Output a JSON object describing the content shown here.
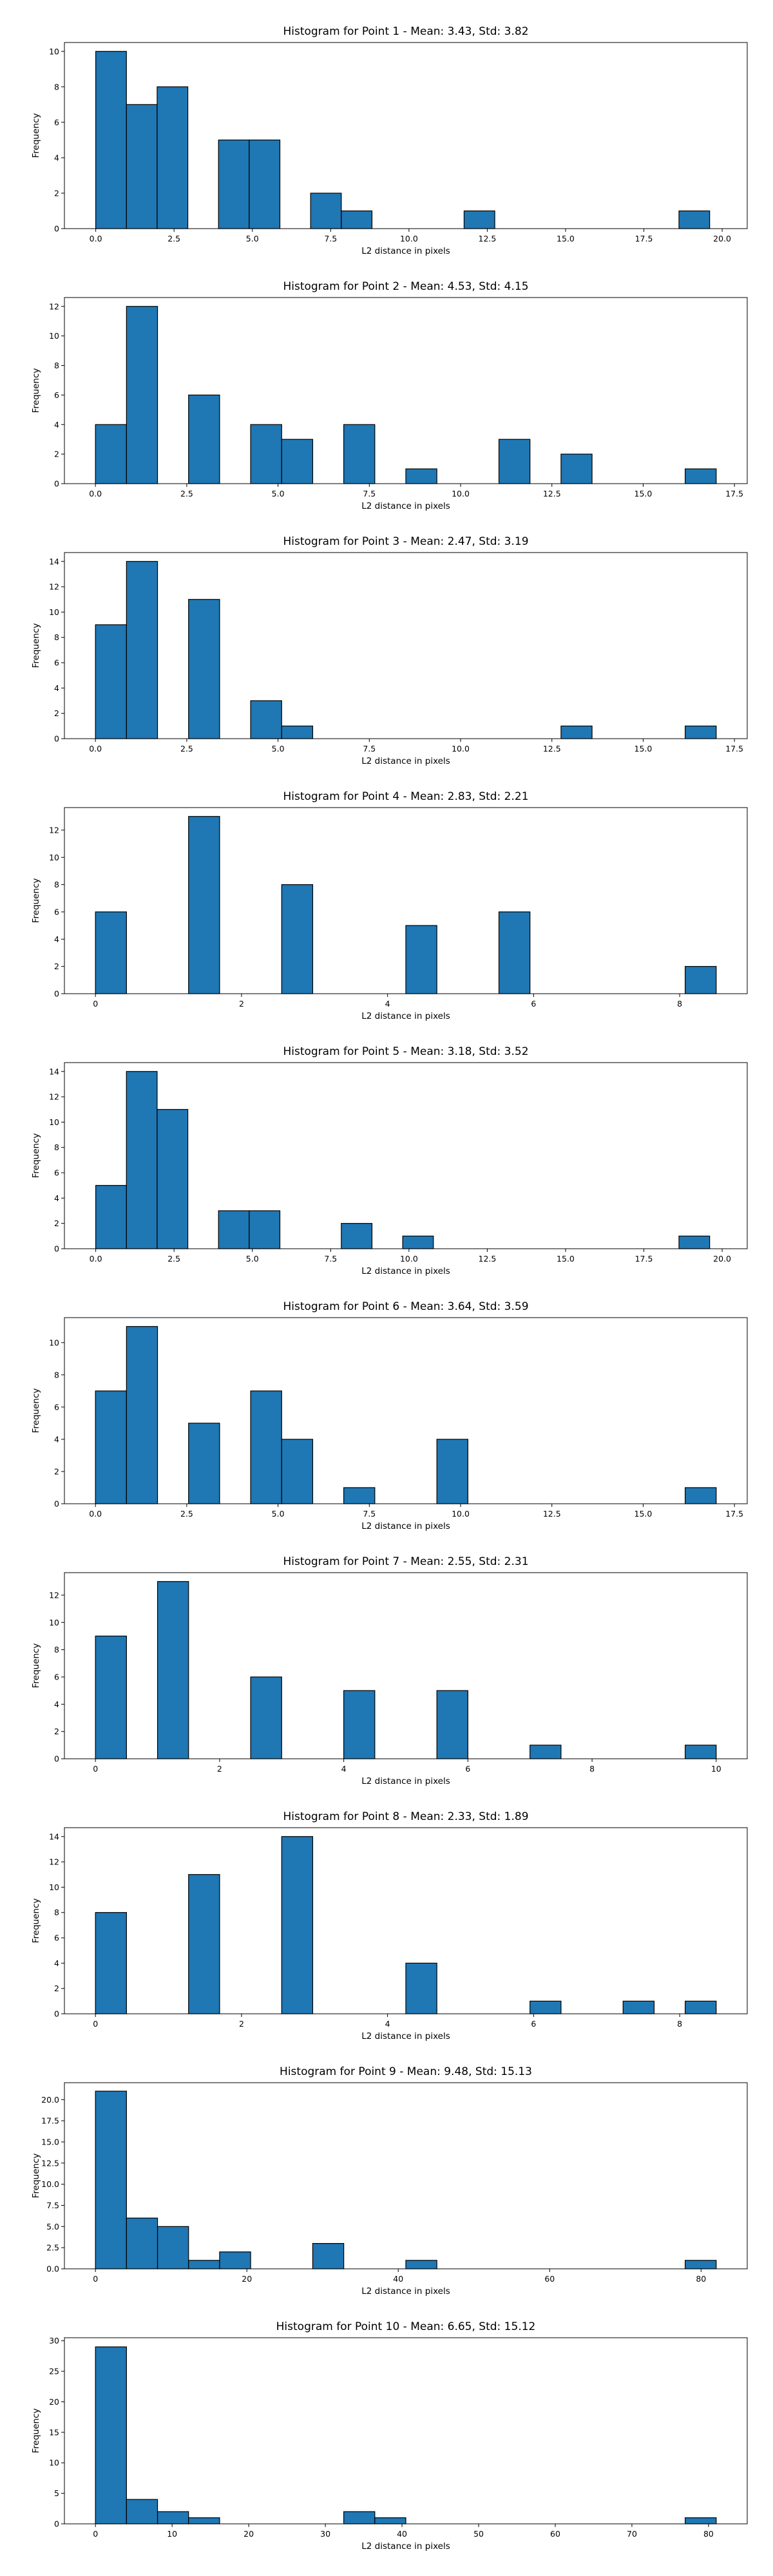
{
  "chart_data": [
    {
      "type": "bar",
      "title": "Histogram for Point 1 - Mean: 3.43, Std: 3.82",
      "xlabel": "L2 distance in pixels",
      "ylabel": "Frequency",
      "xlim": [
        -1.0,
        20.8
      ],
      "ylim": [
        0,
        10.5
      ],
      "xticks": [
        0.0,
        2.5,
        5.0,
        7.5,
        10.0,
        12.5,
        15.0,
        17.5,
        20.0
      ],
      "xtick_labels": [
        "0.0",
        "2.5",
        "5.0",
        "7.5",
        "10.0",
        "12.5",
        "15.0",
        "17.5",
        "20.0"
      ],
      "yticks": [
        0,
        2,
        4,
        6,
        8,
        10
      ],
      "ytick_labels": [
        "0",
        "2",
        "4",
        "6",
        "8",
        "10"
      ],
      "bin_edges": [
        0.0,
        0.98,
        1.96,
        2.94,
        3.92,
        4.9,
        5.88,
        6.86,
        7.84,
        8.82,
        9.8,
        10.78,
        11.76,
        12.74,
        13.72,
        14.7,
        15.68,
        16.66,
        17.64,
        18.62,
        19.6
      ],
      "values": [
        10,
        7,
        8,
        0,
        5,
        5,
        0,
        2,
        1,
        0,
        0,
        0,
        1,
        0,
        0,
        0,
        0,
        0,
        0,
        1
      ],
      "grid": false,
      "legend": "none"
    },
    {
      "type": "bar",
      "title": "Histogram for Point 2 - Mean: 4.53, Std: 4.15",
      "xlabel": "L2 distance in pixels",
      "ylabel": "Frequency",
      "xlim": [
        -0.85,
        17.85
      ],
      "ylim": [
        0,
        12.6
      ],
      "xticks": [
        0.0,
        2.5,
        5.0,
        7.5,
        10.0,
        12.5,
        15.0,
        17.5
      ],
      "xtick_labels": [
        "0.0",
        "2.5",
        "5.0",
        "7.5",
        "10.0",
        "12.5",
        "15.0",
        "17.5"
      ],
      "yticks": [
        0,
        2,
        4,
        6,
        8,
        10,
        12
      ],
      "ytick_labels": [
        "0",
        "2",
        "4",
        "6",
        "8",
        "10",
        "12"
      ],
      "bin_edges": [
        0.0,
        0.85,
        1.7,
        2.55,
        3.4,
        4.25,
        5.1,
        5.95,
        6.8,
        7.65,
        8.5,
        9.35,
        10.2,
        11.05,
        11.9,
        12.75,
        13.6,
        14.45,
        15.3,
        16.15,
        17.0
      ],
      "values": [
        4,
        12,
        0,
        6,
        0,
        4,
        3,
        0,
        4,
        0,
        1,
        0,
        0,
        3,
        0,
        2,
        0,
        0,
        0,
        1
      ],
      "grid": false,
      "legend": "none"
    },
    {
      "type": "bar",
      "title": "Histogram for Point 3 - Mean: 2.47, Std: 3.19",
      "xlabel": "L2 distance in pixels",
      "ylabel": "Frequency",
      "xlim": [
        -0.85,
        17.85
      ],
      "ylim": [
        0,
        14.7
      ],
      "xticks": [
        0.0,
        2.5,
        5.0,
        7.5,
        10.0,
        12.5,
        15.0,
        17.5
      ],
      "xtick_labels": [
        "0.0",
        "2.5",
        "5.0",
        "7.5",
        "10.0",
        "12.5",
        "15.0",
        "17.5"
      ],
      "yticks": [
        0,
        2,
        4,
        6,
        8,
        10,
        12,
        14
      ],
      "ytick_labels": [
        "0",
        "2",
        "4",
        "6",
        "8",
        "10",
        "12",
        "14"
      ],
      "bin_edges": [
        0.0,
        0.85,
        1.7,
        2.55,
        3.4,
        4.25,
        5.1,
        5.95,
        6.8,
        7.65,
        8.5,
        9.35,
        10.2,
        11.05,
        11.9,
        12.75,
        13.6,
        14.45,
        15.3,
        16.15,
        17.0
      ],
      "values": [
        9,
        14,
        0,
        11,
        0,
        3,
        1,
        0,
        0,
        0,
        0,
        0,
        0,
        0,
        0,
        1,
        0,
        0,
        0,
        1
      ],
      "grid": false,
      "legend": "none"
    },
    {
      "type": "bar",
      "title": "Histogram for Point 4 - Mean: 2.83, Std: 2.21",
      "xlabel": "L2 distance in pixels",
      "ylabel": "Frequency",
      "xlim": [
        -0.425,
        8.925
      ],
      "ylim": [
        0,
        13.65
      ],
      "xticks": [
        0,
        2,
        4,
        6,
        8
      ],
      "xtick_labels": [
        "0",
        "2",
        "4",
        "6",
        "8"
      ],
      "yticks": [
        0,
        2,
        4,
        6,
        8,
        10,
        12
      ],
      "ytick_labels": [
        "0",
        "2",
        "4",
        "6",
        "8",
        "10",
        "12"
      ],
      "bin_edges": [
        0.0,
        0.425,
        0.85,
        1.275,
        1.7,
        2.125,
        2.55,
        2.975,
        3.4,
        3.825,
        4.25,
        4.675,
        5.1,
        5.525,
        5.95,
        6.375,
        6.8,
        7.225,
        7.65,
        8.075,
        8.5
      ],
      "values": [
        6,
        0,
        0,
        13,
        0,
        0,
        8,
        0,
        0,
        0,
        5,
        0,
        0,
        6,
        0,
        0,
        0,
        0,
        0,
        2
      ],
      "grid": false,
      "legend": "none"
    },
    {
      "type": "bar",
      "title": "Histogram for Point 5 - Mean: 3.18, Std: 3.52",
      "xlabel": "L2 distance in pixels",
      "ylabel": "Frequency",
      "xlim": [
        -1.0,
        20.8
      ],
      "ylim": [
        0,
        14.7
      ],
      "xticks": [
        0.0,
        2.5,
        5.0,
        7.5,
        10.0,
        12.5,
        15.0,
        17.5,
        20.0
      ],
      "xtick_labels": [
        "0.0",
        "2.5",
        "5.0",
        "7.5",
        "10.0",
        "12.5",
        "15.0",
        "17.5",
        "20.0"
      ],
      "yticks": [
        0,
        2,
        4,
        6,
        8,
        10,
        12,
        14
      ],
      "ytick_labels": [
        "0",
        "2",
        "4",
        "6",
        "8",
        "10",
        "12",
        "14"
      ],
      "bin_edges": [
        0.0,
        0.98,
        1.96,
        2.94,
        3.92,
        4.9,
        5.88,
        6.86,
        7.84,
        8.82,
        9.8,
        10.78,
        11.76,
        12.74,
        13.72,
        14.7,
        15.68,
        16.66,
        17.64,
        18.62,
        19.6
      ],
      "values": [
        5,
        14,
        11,
        0,
        3,
        3,
        0,
        0,
        2,
        0,
        1,
        0,
        0,
        0,
        0,
        0,
        0,
        0,
        0,
        1
      ],
      "grid": false,
      "legend": "none"
    },
    {
      "type": "bar",
      "title": "Histogram for Point 6 - Mean: 3.64, Std: 3.59",
      "xlabel": "L2 distance in pixels",
      "ylabel": "Frequency",
      "xlim": [
        -0.85,
        17.85
      ],
      "ylim": [
        0,
        11.55
      ],
      "xticks": [
        0.0,
        2.5,
        5.0,
        7.5,
        10.0,
        12.5,
        15.0,
        17.5
      ],
      "xtick_labels": [
        "0.0",
        "2.5",
        "5.0",
        "7.5",
        "10.0",
        "12.5",
        "15.0",
        "17.5"
      ],
      "yticks": [
        0,
        2,
        4,
        6,
        8,
        10
      ],
      "ytick_labels": [
        "0",
        "2",
        "4",
        "6",
        "8",
        "10"
      ],
      "bin_edges": [
        0.0,
        0.85,
        1.7,
        2.55,
        3.4,
        4.25,
        5.1,
        5.95,
        6.8,
        7.65,
        8.5,
        9.35,
        10.2,
        11.05,
        11.9,
        12.75,
        13.6,
        14.45,
        15.3,
        16.15,
        17.0
      ],
      "values": [
        7,
        11,
        0,
        5,
        0,
        7,
        4,
        0,
        1,
        0,
        0,
        4,
        0,
        0,
        0,
        0,
        0,
        0,
        0,
        1
      ],
      "grid": false,
      "legend": "none"
    },
    {
      "type": "bar",
      "title": "Histogram for Point 7 - Mean: 2.55, Std: 2.31",
      "xlabel": "L2 distance in pixels",
      "ylabel": "Frequency",
      "xlim": [
        -0.5,
        10.5
      ],
      "ylim": [
        0,
        13.65
      ],
      "xticks": [
        0,
        2,
        4,
        6,
        8,
        10
      ],
      "xtick_labels": [
        "0",
        "2",
        "4",
        "6",
        "8",
        "10"
      ],
      "yticks": [
        0,
        2,
        4,
        6,
        8,
        10,
        12
      ],
      "ytick_labels": [
        "0",
        "2",
        "4",
        "6",
        "8",
        "10",
        "12"
      ],
      "bin_edges": [
        0.0,
        0.5,
        1.0,
        1.5,
        2.0,
        2.5,
        3.0,
        3.5,
        4.0,
        4.5,
        5.0,
        5.5,
        6.0,
        6.5,
        7.0,
        7.5,
        8.0,
        8.5,
        9.0,
        9.5,
        10.0
      ],
      "values": [
        9,
        0,
        13,
        0,
        0,
        6,
        0,
        0,
        5,
        0,
        0,
        5,
        0,
        0,
        1,
        0,
        0,
        0,
        0,
        1
      ],
      "grid": false,
      "legend": "none"
    },
    {
      "type": "bar",
      "title": "Histogram for Point 8 - Mean: 2.33, Std: 1.89",
      "xlabel": "L2 distance in pixels",
      "ylabel": "Frequency",
      "xlim": [
        -0.425,
        8.925
      ],
      "ylim": [
        0,
        14.7
      ],
      "xticks": [
        0,
        2,
        4,
        6,
        8
      ],
      "xtick_labels": [
        "0",
        "2",
        "4",
        "6",
        "8"
      ],
      "yticks": [
        0,
        2,
        4,
        6,
        8,
        10,
        12,
        14
      ],
      "ytick_labels": [
        "0",
        "2",
        "4",
        "6",
        "8",
        "10",
        "12",
        "14"
      ],
      "bin_edges": [
        0.0,
        0.425,
        0.85,
        1.275,
        1.7,
        2.125,
        2.55,
        2.975,
        3.4,
        3.825,
        4.25,
        4.675,
        5.1,
        5.525,
        5.95,
        6.375,
        6.8,
        7.225,
        7.65,
        8.075,
        8.5
      ],
      "values": [
        8,
        0,
        0,
        11,
        0,
        0,
        14,
        0,
        0,
        0,
        4,
        0,
        0,
        0,
        1,
        0,
        0,
        1,
        0,
        1
      ],
      "grid": false,
      "legend": "none"
    },
    {
      "type": "bar",
      "title": "Histogram for Point 9 - Mean: 9.48, Std: 15.13",
      "xlabel": "L2 distance in pixels",
      "ylabel": "Frequency",
      "xlim": [
        -4.1,
        86.1
      ],
      "ylim": [
        0,
        22
      ],
      "xticks": [
        0,
        20,
        40,
        60,
        80
      ],
      "xtick_labels": [
        "0",
        "20",
        "40",
        "60",
        "80"
      ],
      "yticks": [
        0.0,
        2.5,
        5.0,
        7.5,
        10.0,
        12.5,
        15.0,
        17.5,
        20.0
      ],
      "ytick_labels": [
        "0.0",
        "2.5",
        "5.0",
        "7.5",
        "10.0",
        "12.5",
        "15.0",
        "17.5",
        "20.0"
      ],
      "bin_edges": [
        0.0,
        4.1,
        8.2,
        12.3,
        16.4,
        20.5,
        24.6,
        28.7,
        32.8,
        36.9,
        41.0,
        45.1,
        49.2,
        53.3,
        57.4,
        61.5,
        65.6,
        69.7,
        73.8,
        77.9,
        82.0
      ],
      "values": [
        21,
        6,
        5,
        1,
        2,
        0,
        0,
        3,
        0,
        0,
        1,
        0,
        0,
        0,
        0,
        0,
        0,
        0,
        0,
        1
      ],
      "grid": false,
      "legend": "none"
    },
    {
      "type": "bar",
      "title": "Histogram for Point 10 - Mean: 6.65, Std: 15.12",
      "xlabel": "L2 distance in pixels",
      "ylabel": "Frequency",
      "xlim": [
        -4.05,
        85.05
      ],
      "ylim": [
        0,
        30.5
      ],
      "xticks": [
        0,
        10,
        20,
        30,
        40,
        50,
        60,
        70,
        80
      ],
      "xtick_labels": [
        "0",
        "10",
        "20",
        "30",
        "40",
        "50",
        "60",
        "70",
        "80"
      ],
      "yticks": [
        0,
        5,
        10,
        15,
        20,
        25,
        30
      ],
      "ytick_labels": [
        "0",
        "5",
        "10",
        "15",
        "20",
        "25",
        "30"
      ],
      "bin_edges": [
        0.0,
        4.05,
        8.1,
        12.15,
        16.2,
        20.25,
        24.3,
        28.35,
        32.4,
        36.45,
        40.5,
        44.55,
        48.6,
        52.65,
        56.7,
        60.75,
        64.8,
        68.85,
        72.9,
        76.95,
        81.0
      ],
      "values": [
        29,
        4,
        2,
        1,
        0,
        0,
        0,
        0,
        2,
        1,
        0,
        0,
        0,
        0,
        0,
        0,
        0,
        0,
        0,
        1
      ],
      "grid": false,
      "legend": "none"
    }
  ]
}
